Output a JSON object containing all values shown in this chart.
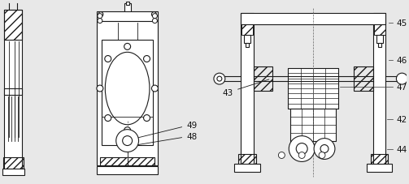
{
  "bg_color": "#e8e8e8",
  "line_color": "#1a1a1a",
  "figsize": [
    5.03,
    2.28
  ],
  "dpi": 100,
  "labels_right": [
    "45",
    "46",
    "47",
    "42",
    "44"
  ],
  "label_43": "43",
  "label_48": "48",
  "label_49": "49"
}
